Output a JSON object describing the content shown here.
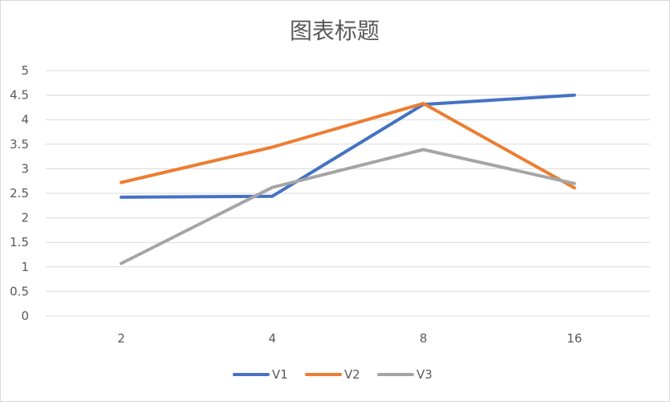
{
  "chart_data": {
    "type": "line",
    "title": "图表标题",
    "categories": [
      "2",
      "4",
      "8",
      "16"
    ],
    "ylim": [
      0,
      5
    ],
    "yticks": [
      "0",
      "0.5",
      "1",
      "1.5",
      "2",
      "2.5",
      "3",
      "3.5",
      "4",
      "4.5",
      "5"
    ],
    "grid": true,
    "legend_position": "bottom",
    "series": [
      {
        "name": "V1",
        "color": "#4472c4",
        "values": [
          2.42,
          2.44,
          4.31,
          4.5
        ]
      },
      {
        "name": "V2",
        "color": "#ed7d31",
        "values": [
          2.72,
          3.44,
          4.33,
          2.61
        ]
      },
      {
        "name": "V3",
        "color": "#a5a5a5",
        "values": [
          1.07,
          2.62,
          3.39,
          2.7
        ]
      }
    ]
  }
}
